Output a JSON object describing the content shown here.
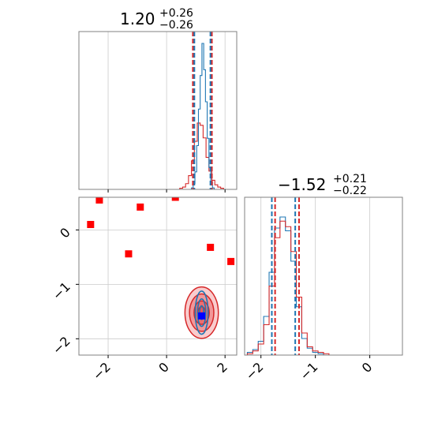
{
  "chart_data": {
    "type": "corner",
    "param1": {
      "title_value": "1.20",
      "title_sup": "+0.26",
      "title_sub": "−0.26",
      "range": [
        -3.0,
        2.4
      ],
      "ticks": [
        -2,
        0,
        2
      ],
      "tick_labels": [
        "−2",
        "0",
        "2"
      ],
      "quantiles_blue": [
        0.95,
        1.5
      ],
      "quantiles_red": [
        0.9,
        1.55
      ]
    },
    "param2": {
      "title_value": "−1.52",
      "title_sup": "+0.21",
      "title_sub": "−0.22",
      "range": [
        -2.3,
        0.6
      ],
      "ticks": [
        -2,
        -1,
        0
      ],
      "tick_labels": [
        "−2",
        "−1",
        "0"
      ],
      "quantiles_blue": [
        -1.8,
        -1.37
      ],
      "quantiles_red": [
        -1.74,
        -1.3
      ]
    },
    "hist_param1_blue": {
      "x": [
        0.88,
        0.94,
        1.0,
        1.06,
        1.12,
        1.18,
        1.24,
        1.3,
        1.36,
        1.42,
        1.48,
        1.54,
        1.6
      ],
      "values": [
        0.01,
        0.04,
        0.12,
        0.3,
        0.55,
        0.78,
        1.0,
        0.82,
        0.6,
        0.35,
        0.15,
        0.05,
        0.01
      ]
    },
    "hist_param1_red": {
      "x": [
        0.5,
        0.6,
        0.7,
        0.8,
        0.9,
        1.0,
        1.1,
        1.2,
        1.3,
        1.4,
        1.5,
        1.6,
        1.7,
        1.8,
        1.9
      ],
      "values": [
        0.01,
        0.02,
        0.05,
        0.12,
        0.25,
        0.42,
        0.58,
        0.56,
        0.45,
        0.28,
        0.16,
        0.08,
        0.04,
        0.02,
        0.01
      ]
    },
    "hist_param2_blue": {
      "x": [
        -2.2,
        -2.1,
        -2.0,
        -1.9,
        -1.8,
        -1.7,
        -1.6,
        -1.5,
        -1.4,
        -1.3,
        -1.2,
        -1.1,
        -1.0,
        -0.9,
        -0.8
      ],
      "values": [
        0.02,
        0.04,
        0.1,
        0.28,
        0.6,
        0.92,
        1.0,
        0.9,
        0.68,
        0.35,
        0.12,
        0.05,
        0.02,
        0.01,
        0.0
      ]
    },
    "hist_param2_red": {
      "x": [
        -2.2,
        -2.1,
        -2.0,
        -1.9,
        -1.8,
        -1.7,
        -1.6,
        -1.5,
        -1.4,
        -1.3,
        -1.2,
        -1.1,
        -1.0,
        -0.9,
        -0.8
      ],
      "values": [
        0.01,
        0.03,
        0.08,
        0.22,
        0.5,
        0.85,
        0.97,
        0.93,
        0.75,
        0.42,
        0.16,
        0.06,
        0.03,
        0.02,
        0.01
      ]
    },
    "red_markers": [
      {
        "x": -2.6,
        "y": 0.1
      },
      {
        "x": -2.3,
        "y": 0.55
      },
      {
        "x": -0.9,
        "y": 0.42
      },
      {
        "x": 0.3,
        "y": 0.6
      },
      {
        "x": -1.3,
        "y": -0.44
      },
      {
        "x": 1.5,
        "y": -0.32
      },
      {
        "x": 2.2,
        "y": -0.58
      }
    ],
    "blue_marker": {
      "x": 1.2,
      "y": -1.58
    },
    "contours_red": {
      "center": [
        1.2,
        -1.52
      ],
      "sigma": [
        0.26,
        0.215
      ]
    },
    "contours_blue": {
      "center": [
        1.2,
        -1.52
      ],
      "sigma": [
        0.1,
        0.18
      ]
    },
    "colors": {
      "red": "#d62728",
      "red_fill": "#e8484c",
      "blue": "#1f77b4",
      "marker_red": "#ff0000",
      "marker_blue": "#0000ff",
      "grid": "#cccccc",
      "frame": "#808080"
    }
  }
}
